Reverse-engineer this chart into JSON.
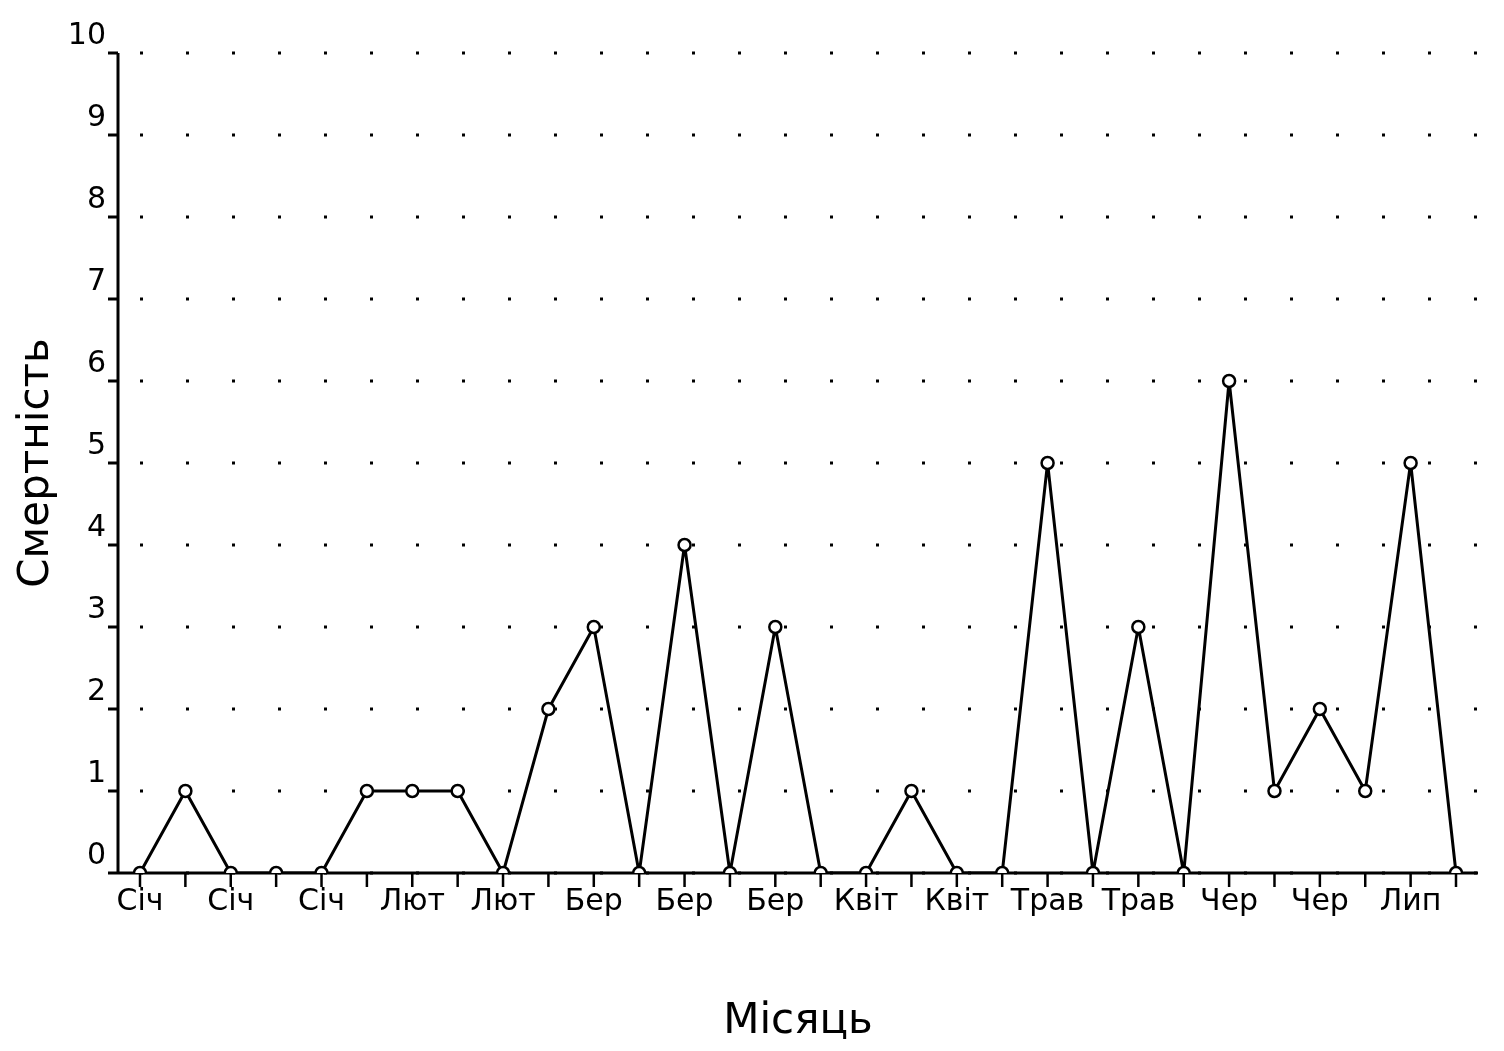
{
  "chart_data": {
    "type": "line",
    "xlabel": "Місяць",
    "ylabel": "Смертність",
    "categories": [
      "Січ",
      null,
      "Січ",
      null,
      "Січ",
      null,
      "Лют",
      null,
      "Лют",
      null,
      "Бер",
      null,
      "Бер",
      null,
      "Бер",
      null,
      "Квіт",
      null,
      "Квіт",
      null,
      "Трав",
      null,
      "Трав",
      null,
      "Чер",
      null,
      "Чер",
      null,
      "Лип",
      null
    ],
    "series": [
      {
        "color": "#000000",
        "values": [
          0,
          1,
          0,
          0,
          0,
          1,
          1,
          1,
          0,
          2,
          3,
          0,
          4,
          0,
          3,
          0,
          0,
          1,
          0,
          0,
          5,
          0,
          3,
          0,
          6,
          1,
          2,
          1,
          5,
          0
        ]
      }
    ],
    "ylim": [
      0,
      10
    ],
    "yticks": [
      0,
      1,
      2,
      3,
      4,
      5,
      6,
      7,
      8,
      9,
      10
    ],
    "grid": "y",
    "marker": "circle",
    "line_style": "solid",
    "legend": false
  }
}
